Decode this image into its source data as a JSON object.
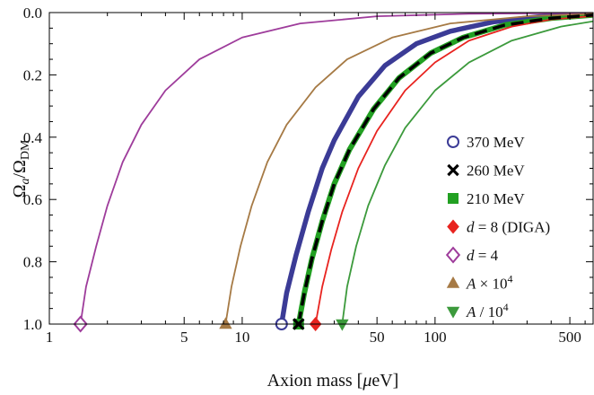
{
  "chart_data": {
    "type": "line",
    "title": "",
    "xlabel": "Axion mass [μeV]",
    "ylabel": "Ωa/ΩDM",
    "x_scale": "log",
    "xlim": [
      1,
      660
    ],
    "ylim": [
      0,
      1.0
    ],
    "y_inverted": true,
    "grid": false,
    "legend_placement": "bottom-right",
    "x_ticks": [
      {
        "value": 1,
        "label": "1"
      },
      {
        "value": 5,
        "label": "5"
      },
      {
        "value": 10,
        "label": "10"
      },
      {
        "value": 50,
        "label": "50"
      },
      {
        "value": 100,
        "label": "100"
      },
      {
        "value": 500,
        "label": "500"
      }
    ],
    "y_ticks": [
      {
        "value": 0.0,
        "label": "0.0"
      },
      {
        "value": 0.2,
        "label": "0.2"
      },
      {
        "value": 0.4,
        "label": "0.4"
      },
      {
        "value": 0.6,
        "label": "0.6"
      },
      {
        "value": 0.8,
        "label": "0.8"
      },
      {
        "value": 1.0,
        "label": "1.0"
      }
    ],
    "series": [
      {
        "name": "370 MeV",
        "label_parts": [
          {
            "t": "370 MeV"
          }
        ],
        "color": "#3b3b96",
        "marker": "circle-open",
        "line_width": 5.5,
        "dashed": false,
        "x": [
          16,
          17,
          19,
          22,
          26,
          30,
          40,
          55,
          80,
          120,
          200,
          350,
          660
        ],
        "y": [
          1.0,
          0.9,
          0.78,
          0.64,
          0.5,
          0.41,
          0.27,
          0.17,
          0.1,
          0.06,
          0.03,
          0.013,
          0.004
        ]
      },
      {
        "name": "260 MeV",
        "label_parts": [
          {
            "t": "260 MeV"
          }
        ],
        "color": "#000000",
        "marker": "x",
        "line_width": 3.5,
        "dashed": true,
        "x": [
          19.6,
          21,
          23,
          26,
          30,
          36,
          48,
          65,
          95,
          140,
          230,
          400,
          660
        ],
        "y": [
          1.0,
          0.9,
          0.79,
          0.67,
          0.55,
          0.44,
          0.31,
          0.21,
          0.13,
          0.08,
          0.04,
          0.018,
          0.008
        ]
      },
      {
        "name": "210 MeV",
        "label_parts": [
          {
            "t": "210 MeV"
          }
        ],
        "color": "#22a022",
        "marker": "square",
        "line_width": 6,
        "dashed": false,
        "x": [
          19.6,
          21,
          23,
          26,
          30,
          36,
          48,
          65,
          95,
          140,
          230,
          400,
          660
        ],
        "y": [
          1.0,
          0.9,
          0.79,
          0.67,
          0.55,
          0.44,
          0.31,
          0.21,
          0.13,
          0.08,
          0.04,
          0.018,
          0.008
        ]
      },
      {
        "name": "d = 8 (DIGA)",
        "label_parts": [
          {
            "t": "d",
            "it": true
          },
          {
            "t": " = 8 (DIGA)"
          }
        ],
        "color": "#e8231f",
        "marker": "diamond",
        "line_width": 1.8,
        "dashed": false,
        "x": [
          24,
          26,
          29,
          33,
          40,
          50,
          70,
          100,
          150,
          250,
          400,
          660
        ],
        "y": [
          1.0,
          0.88,
          0.76,
          0.64,
          0.5,
          0.38,
          0.25,
          0.16,
          0.09,
          0.045,
          0.022,
          0.011
        ]
      },
      {
        "name": "d = 4",
        "label_parts": [
          {
            "t": "d",
            "it": true
          },
          {
            "t": " = 4"
          }
        ],
        "color": "#9e3c9b",
        "marker": "diamond-open",
        "line_width": 1.8,
        "dashed": false,
        "x": [
          1.45,
          1.55,
          1.75,
          2.0,
          2.4,
          3.0,
          4.0,
          6.0,
          10,
          20,
          50,
          150,
          660
        ],
        "y": [
          1.0,
          0.88,
          0.75,
          0.62,
          0.48,
          0.36,
          0.25,
          0.15,
          0.08,
          0.035,
          0.012,
          0.004,
          0.001
        ]
      },
      {
        "name": "A × 10^4",
        "label_parts": [
          {
            "t": "A",
            "it": true
          },
          {
            "t": " × 10"
          },
          {
            "t": "4",
            "sup": true
          }
        ],
        "color": "#a67a45",
        "marker": "triangle-up",
        "line_width": 1.8,
        "dashed": false,
        "x": [
          8.2,
          8.8,
          9.8,
          11.2,
          13.5,
          17,
          24,
          35,
          60,
          120,
          300,
          660
        ],
        "y": [
          1.0,
          0.88,
          0.75,
          0.62,
          0.48,
          0.36,
          0.24,
          0.15,
          0.08,
          0.035,
          0.012,
          0.004
        ]
      },
      {
        "name": "A / 10^4",
        "label_parts": [
          {
            "t": "A",
            "it": true
          },
          {
            "t": " / 10"
          },
          {
            "t": "4",
            "sup": true
          }
        ],
        "color": "#3c9a3c",
        "marker": "triangle-down",
        "line_width": 1.8,
        "dashed": false,
        "x": [
          33,
          35,
          39,
          45,
          55,
          70,
          100,
          150,
          250,
          450,
          660
        ],
        "y": [
          1.0,
          0.88,
          0.75,
          0.62,
          0.49,
          0.37,
          0.25,
          0.16,
          0.09,
          0.045,
          0.028
        ]
      }
    ]
  }
}
